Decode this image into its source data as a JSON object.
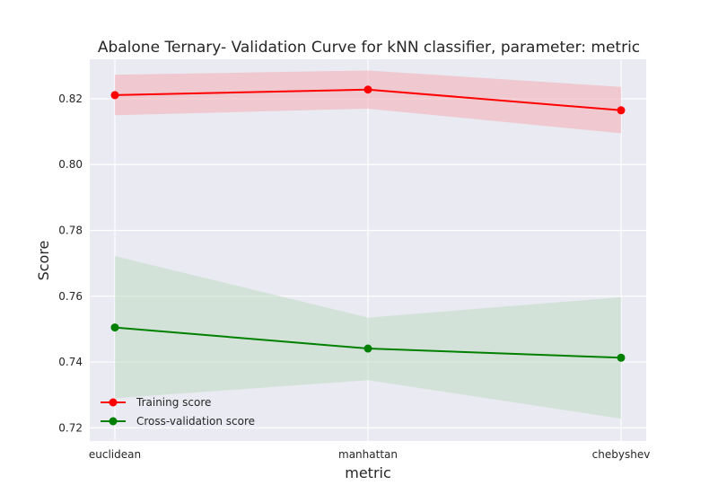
{
  "chart_data": {
    "type": "line",
    "title": "Abalone Ternary- Validation Curve for kNN classifier, parameter: metric",
    "xlabel": "metric",
    "ylabel": "Score",
    "categories": [
      "euclidean",
      "manhattan",
      "chebyshev"
    ],
    "ylim": [
      0.716,
      0.832
    ],
    "yticks": [
      "0.72",
      "0.74",
      "0.76",
      "0.78",
      "0.80",
      "0.82"
    ],
    "grid": true,
    "legend_position": "lower-left",
    "series": [
      {
        "name": "Training score",
        "color": "#ff0000",
        "fill_color": "#f4a6ae",
        "values": [
          0.8211,
          0.8228,
          0.8165
        ],
        "upper": [
          0.8273,
          0.8286,
          0.8236
        ],
        "lower": [
          0.815,
          0.817,
          0.8095
        ]
      },
      {
        "name": "Cross-validation score",
        "color": "#008000",
        "fill_color": "#b9d9be",
        "values": [
          0.7505,
          0.7441,
          0.7413
        ],
        "upper": [
          0.7722,
          0.7535,
          0.7597
        ],
        "lower": [
          0.729,
          0.7345,
          0.7228
        ]
      }
    ]
  }
}
